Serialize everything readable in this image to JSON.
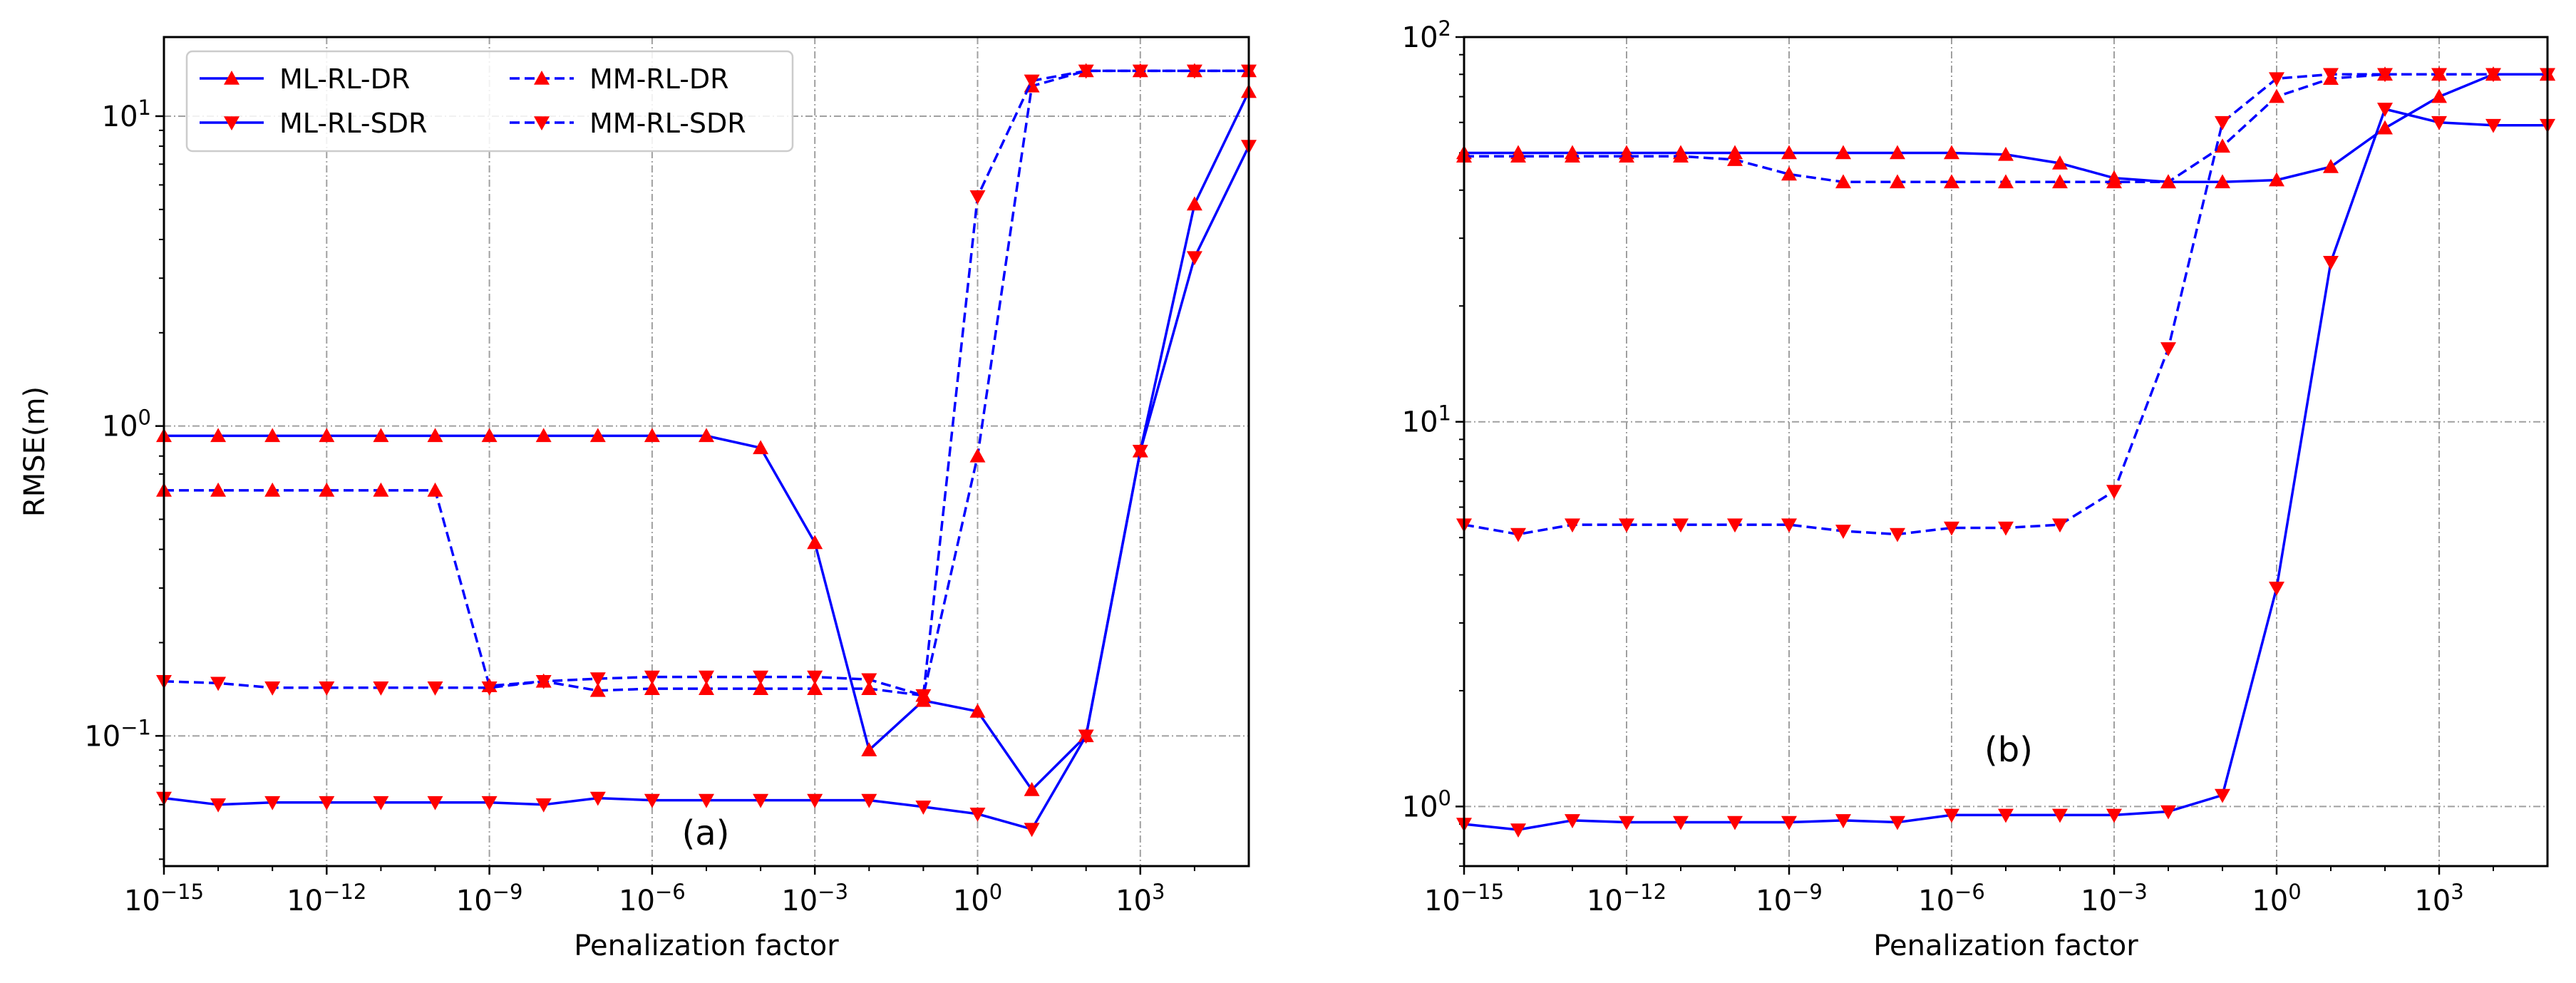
{
  "chart_data": [
    {
      "type": "line",
      "panel_label": "(a)",
      "xlabel": "Penalization factor",
      "ylabel": "RMSE(m)",
      "xscale": "log",
      "yscale": "log",
      "xlim": [
        1e-15,
        100000.0
      ],
      "ylim": [
        0.038,
        18
      ],
      "xticks": [
        "10^-15",
        "10^-12",
        "10^-9",
        "10^-6",
        "10^-3",
        "10^0",
        "10^3"
      ],
      "yticks": [
        "10^-1",
        "10^0",
        "10^1"
      ],
      "grid": true,
      "legend": {
        "position": "top-left",
        "columns": 2,
        "entries": [
          "ML-RL-DR",
          "ML-RL-SDR",
          "MM-RL-DR",
          "MM-RL-SDR"
        ]
      },
      "x": [
        1e-15,
        1e-14,
        1e-13,
        1e-12,
        1e-11,
        1e-10,
        1e-09,
        1e-08,
        1e-07,
        1e-06,
        1e-05,
        0.0001,
        0.001,
        0.01,
        0.1,
        1.0,
        10.0,
        100.0,
        1000.0,
        10000.0,
        100000.0
      ],
      "series": [
        {
          "name": "ML-RL-DR",
          "marker": "triangle-up",
          "linestyle": "solid",
          "values": [
            0.93,
            0.93,
            0.93,
            0.93,
            0.93,
            0.93,
            0.93,
            0.93,
            0.93,
            0.93,
            0.93,
            0.85,
            0.42,
            0.09,
            0.13,
            0.12,
            0.067,
            0.1,
            0.83,
            5.2,
            12
          ]
        },
        {
          "name": "ML-RL-SDR",
          "marker": "triangle-down",
          "linestyle": "solid",
          "values": [
            0.063,
            0.06,
            0.061,
            0.061,
            0.061,
            0.061,
            0.061,
            0.06,
            0.063,
            0.062,
            0.062,
            0.062,
            0.062,
            0.062,
            0.059,
            0.056,
            0.05,
            0.1,
            0.83,
            3.5,
            8
          ]
        },
        {
          "name": "MM-RL-DR",
          "marker": "triangle-up",
          "linestyle": "dashed",
          "values": [
            0.62,
            0.62,
            0.62,
            0.62,
            0.62,
            0.62,
            0.145,
            0.15,
            0.14,
            0.142,
            0.142,
            0.142,
            0.142,
            0.142,
            0.135,
            0.8,
            12.5,
            14,
            14,
            14,
            14
          ]
        },
        {
          "name": "MM-RL-SDR",
          "marker": "triangle-down",
          "linestyle": "dashed",
          "values": [
            0.15,
            0.148,
            0.143,
            0.143,
            0.143,
            0.143,
            0.143,
            0.15,
            0.153,
            0.155,
            0.155,
            0.155,
            0.155,
            0.152,
            0.135,
            5.5,
            13,
            14,
            14,
            14,
            14
          ]
        }
      ]
    },
    {
      "type": "line",
      "panel_label": "(b)",
      "xlabel": "Penalization factor",
      "ylabel": "",
      "xscale": "log",
      "yscale": "log",
      "xlim": [
        1e-15,
        100000.0
      ],
      "ylim": [
        0.7,
        100
      ],
      "xticks": [
        "10^-15",
        "10^-12",
        "10^-9",
        "10^-6",
        "10^-3",
        "10^0",
        "10^3"
      ],
      "yticks": [
        "10^0",
        "10^1",
        "10^2"
      ],
      "grid": true,
      "x": [
        1e-15,
        1e-14,
        1e-13,
        1e-12,
        1e-11,
        1e-10,
        1e-09,
        1e-08,
        1e-07,
        1e-06,
        1e-05,
        0.0001,
        0.001,
        0.01,
        0.1,
        1.0,
        10.0,
        100.0,
        1000.0,
        10000.0,
        100000.0
      ],
      "series": [
        {
          "name": "ML-RL-DR",
          "marker": "triangle-up",
          "linestyle": "solid",
          "values": [
            50,
            50,
            50,
            50,
            50,
            50,
            50,
            50,
            50,
            50,
            49.5,
            47,
            43,
            42,
            42,
            42.5,
            46,
            58,
            70,
            80,
            80
          ]
        },
        {
          "name": "ML-RL-SDR",
          "marker": "triangle-down",
          "linestyle": "solid",
          "values": [
            0.9,
            0.87,
            0.92,
            0.91,
            0.91,
            0.91,
            0.91,
            0.92,
            0.91,
            0.95,
            0.95,
            0.95,
            0.95,
            0.97,
            1.07,
            3.7,
            26,
            65,
            60,
            59,
            59
          ]
        },
        {
          "name": "MM-RL-DR",
          "marker": "triangle-up",
          "linestyle": "dashed",
          "values": [
            49,
            49,
            49,
            49,
            49,
            48,
            44,
            42,
            42,
            42,
            42,
            42,
            42,
            42,
            52,
            70,
            78,
            80,
            80,
            80,
            80
          ]
        },
        {
          "name": "MM-RL-SDR",
          "marker": "triangle-down",
          "linestyle": "dashed",
          "values": [
            5.4,
            5.1,
            5.4,
            5.4,
            5.4,
            5.4,
            5.4,
            5.2,
            5.1,
            5.3,
            5.3,
            5.4,
            6.6,
            15.5,
            60,
            78,
            80,
            80,
            80,
            80,
            80
          ]
        }
      ]
    }
  ],
  "style": {
    "line_color": "#0000ff",
    "marker_color": "#ff0000",
    "grid_color": "#a0a0a0"
  }
}
